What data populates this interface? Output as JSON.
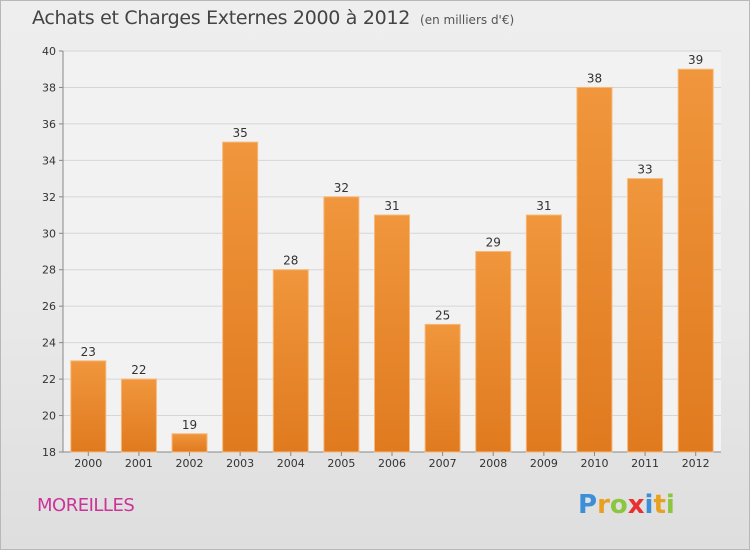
{
  "chart_data": {
    "type": "bar",
    "title": "Achats et Charges Externes 2000 à 2012",
    "subtitle": "(en milliers d'€)",
    "categories": [
      "2000",
      "2001",
      "2002",
      "2003",
      "2004",
      "2005",
      "2006",
      "2007",
      "2008",
      "2009",
      "2010",
      "2011",
      "2012"
    ],
    "values": [
      23,
      22,
      19,
      35,
      28,
      32,
      31,
      25,
      29,
      31,
      38,
      33,
      39
    ],
    "ylim": [
      18,
      40
    ],
    "yticks": [
      18,
      20,
      22,
      24,
      26,
      28,
      30,
      32,
      34,
      36,
      38,
      40
    ],
    "grid": true,
    "bar_color": "#f0963c",
    "bar_color_dark": "#e07a1f"
  },
  "footer": {
    "place": "MOREILLES",
    "logo_letters": [
      {
        "ch": "P",
        "color": "#3a8fd8"
      },
      {
        "ch": "r",
        "color": "#e8a020"
      },
      {
        "ch": "o",
        "color": "#8cc63f"
      },
      {
        "ch": "x",
        "color": "#e83030"
      },
      {
        "ch": "i",
        "color": "#3a8fd8"
      },
      {
        "ch": "t",
        "color": "#e8a020"
      },
      {
        "ch": "i",
        "color": "#8cc63f"
      }
    ]
  }
}
